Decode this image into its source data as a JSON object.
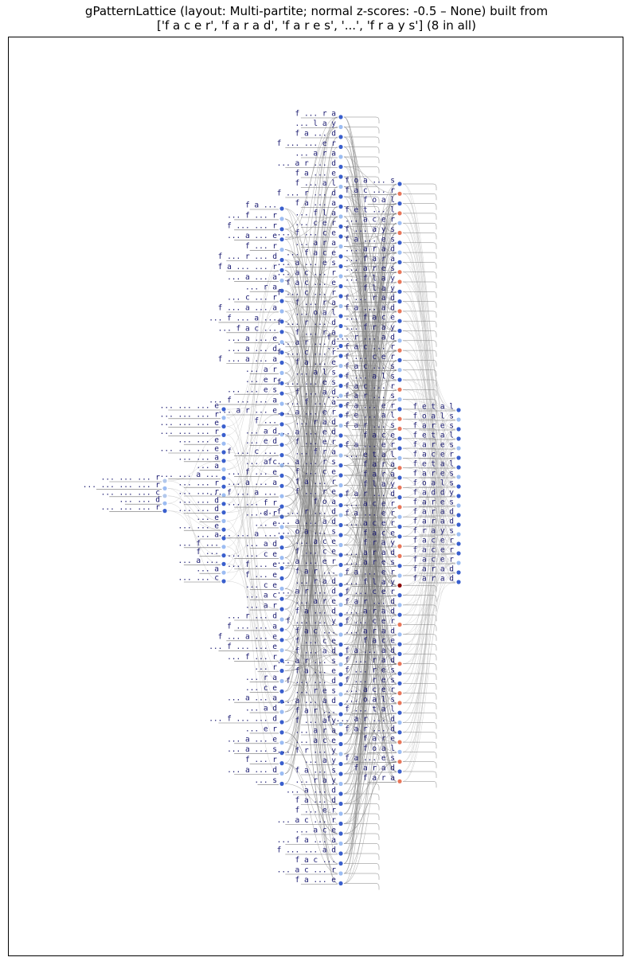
{
  "title": {
    "line1": "gPatternLattice (layout: Multi-partite; normal z-scores: -0.5 – None) built from",
    "line2": "['f a c e r', 'f a r a d', 'f a r e s', '...', 'f r a y s'] (8 in all)"
  },
  "colors": {
    "dark": "#3a5fcd",
    "light": "#9cbcf2",
    "hot": "#e8775a",
    "top": "#8b0000",
    "edge": "#808080",
    "faint": "#c8c8c8",
    "label": "#191970"
  },
  "diagram": {
    "columns": [
      {
        "id": "c1",
        "labels": [
          "... ... ... r",
          "... ... ... ... r",
          "... ... ... c",
          "... ... d",
          "... ... ... r"
        ]
      },
      {
        "id": "c2",
        "labels": [
          "... ... ... e",
          "... ... ... r",
          "... ... ... e",
          "... ... ... r",
          "... ... e",
          "... ... ... e",
          "... ... a",
          "... a",
          "... ... a ...",
          "... ... r",
          "... ... r",
          "... ... d",
          "... ... d",
          "... e",
          "... ... e",
          "... a",
          "... f ...",
          "f ...",
          "... a ...",
          "... a",
          "... ... c"
        ]
      },
      {
        "id": "c3",
        "labels": [
          "f a ...",
          "... f ... r",
          "f ... ... r",
          "... a ... e",
          "f ... r",
          "f ... r ... d",
          "f a ... ... r",
          "... a ... a",
          "... r a",
          "... c ... r",
          "f ... a ... a",
          "... f ... a ...",
          "... f a c ...",
          "... a ... e",
          "... a ... d",
          "f ... a ... a",
          "... a r",
          "... e r",
          "... ... e s",
          "... f ... ... a",
          "... a r ... e",
          "f ...",
          "... a d",
          "... e d",
          "f ... c ...",
          "... a c",
          "... f ... e",
          "... a ... a",
          "... f ... a ...",
          "... ... f r",
          "... d r",
          "... e",
          "... ... a ...",
          "... a d",
          "... ... c e",
          "... f ... e",
          "f ... e",
          "... c e",
          "... a c",
          "... a r",
          "... r ... d",
          "f ... ... a",
          "f ... a ... e",
          "... f ... ... e",
          "... f ... r",
          "... r",
          "... r a",
          "... c e",
          "... a ... a",
          "... a d",
          "... f ... ... d",
          "... e r",
          "... a ... e",
          "... a ... s",
          "f ... r",
          "... a ... d",
          "... s"
        ]
      },
      {
        "id": "c4",
        "labels": [
          "f ... r a",
          "... l a y",
          "f a ... d",
          "f ... ... e r",
          "... a r a",
          "... a r ... d",
          "f a ... e",
          "f ... a l",
          "f ... r ... d",
          "f a ... a",
          "... f l a",
          "... c e r",
          "... f ... c e",
          "... a r a",
          "... f a c e",
          "... a ... e s",
          "... a c ... r",
          "f a c ... e",
          "f ... c ... r",
          "f ... r a",
          "... o a l",
          "f ... r ... d",
          "f ... r a",
          "... a r ... d",
          "f ... c ... r",
          "f a ... e",
          "... a l s",
          "f ... ... e s",
          "f ... a d",
          "... f ... a",
          "... a ... e r",
          "... r a d",
          "... a ... e d",
          "f ... e r",
          "... f r a",
          "f ... a ... r s",
          "f ... c e",
          "f a ... r",
          "f ... r e",
          "f o a",
          "... f ... r ... d",
          "... a ... a d",
          "... o a ... s",
          "... a c e",
          "f ... c e",
          "... a ... e r",
          "f a r ...",
          "... r a d",
          "... a r ... d",
          "... a r e",
          "f a ... d",
          "f ... ... y",
          "f a c ...",
          "f ... c e",
          "f ... a d",
          "... a r ... s",
          "f a ... e",
          "f ... ... d",
          "... r e s",
          "... a ... a d",
          "f a r ...",
          "f ... a y",
          "... a r a",
          "... a c e",
          "... f r ... y",
          "... a y",
          "f a ... s",
          "... r a y",
          "... a ... d",
          "f a ... d",
          "f ... e r",
          "... a c ... r",
          "... a c e",
          "... f a ... a",
          "f ... ... a d",
          "f a c ...",
          "... a c ... r",
          "f a ... e"
        ]
      },
      {
        "id": "c5",
        "labels": [
          "f o a ... s",
          "f a c ... r",
          "f o a l",
          "f e t ... l",
          "... a c e r",
          "f ... a y s",
          "f a ... e s",
          "... a r a d",
          "... f a r a",
          "... a r e s",
          "... f l a y",
          "f l a y",
          "f ... r a d",
          "f a ... a d",
          "... f a c e",
          "... f r a y",
          "f ... r ... a d",
          "... f a c ... r",
          "f ... c e r",
          "f a c ... s",
          "f ... a l s",
          "f a c ... r",
          "... f a r ... s",
          "f a ... e r",
          "f e ... a l",
          "f a r ... s",
          "f a c e",
          "f a ... e r",
          "... e t a l",
          "f a r a",
          "f a r a",
          "f l a y",
          "f a r ... d",
          "... a c e r",
          "f a ... e r",
          "... a c e r",
          "f a c e",
          "f r a y",
          "... a r a d",
          "... a r e s",
          "f a ... e r",
          "... f l a y",
          "f ... c e r",
          "f a r ... d",
          "... a r a d",
          "f ... c e r",
          "... a r a d",
          "f a c e",
          "f a ... a d",
          "f ... r a d",
          "f ... r e s",
          "f ... r e s",
          "... a c e r",
          "... o a l s",
          "f ... t a l",
          "f ... a r ... d",
          "f a r ... d",
          "f a r e",
          "f o a l",
          "f a ... e s",
          "f a r a d",
          "f a r a"
        ]
      },
      {
        "id": "c6",
        "labels": [
          "f e t a l",
          "f o a l s",
          "f a r e s",
          "f e t a l",
          "f a r e s",
          "f a c e r",
          "f e t a l",
          "f a r e s",
          "f o a l s",
          "f a d d y",
          "f a r e s",
          "f a r a d",
          "f a r a d",
          "f r a y s",
          "f a c e r",
          "f a c e r",
          "f a c e r",
          "f a r a d",
          "f a r a d"
        ]
      }
    ]
  }
}
